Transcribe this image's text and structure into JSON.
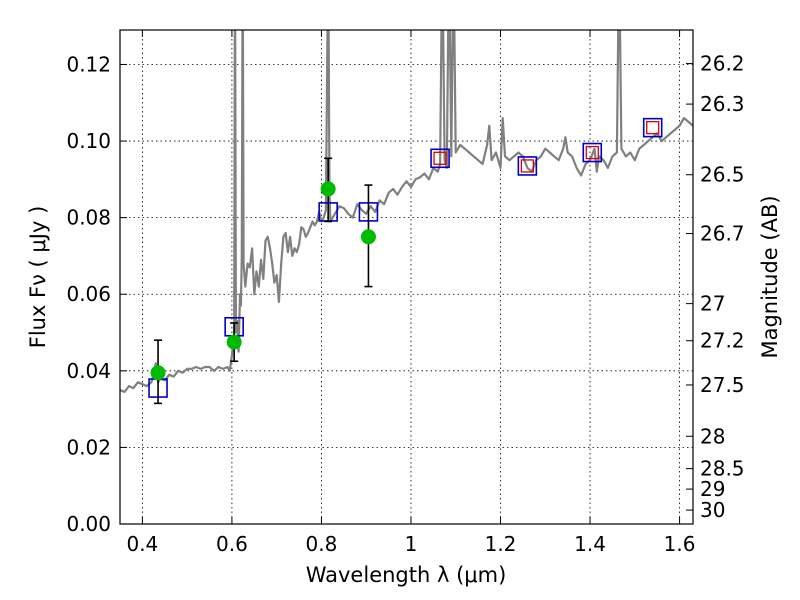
{
  "chart_data": {
    "type": "line",
    "xlabel": "Wavelength  λ (μm)",
    "ylabel": "Flux  Fν  ( μJy )",
    "ylabel_right": "Magnitude (AB)",
    "xlim": [
      0.35,
      1.63
    ],
    "ylim": [
      0.0,
      0.129
    ],
    "grid": true,
    "x_ticks": [
      0.4,
      0.6,
      0.8,
      1.0,
      1.2,
      1.4,
      1.6
    ],
    "x_tick_labels": [
      "0.4",
      "0.6",
      "0.8",
      "1",
      "1.2",
      "1.4",
      "1.6"
    ],
    "y_ticks": [
      0.0,
      0.02,
      0.04,
      0.06,
      0.08,
      0.1,
      0.12
    ],
    "y_tick_labels": [
      "0.00",
      "0.02",
      "0.04",
      "0.06",
      "0.08",
      "0.10",
      "0.12"
    ],
    "mag_ticks": [
      26.2,
      26.3,
      26.5,
      26.7,
      27,
      27.2,
      27.5,
      28,
      28.5,
      29,
      30
    ],
    "mag_tick_labels": [
      "26.2",
      "26.3",
      "26.5",
      "26.7",
      "27",
      "27.2",
      "27.5",
      "28",
      "28.5",
      "29",
      "30"
    ],
    "colors": {
      "spectrum": "#808080",
      "observed": "#00bb00",
      "model_box": "#0000cc",
      "model_box_inner": "#dd0000",
      "error_bar": "#000000"
    },
    "series": [
      {
        "kind": "spectrum",
        "points": [
          [
            0.35,
            0.035
          ],
          [
            0.36,
            0.0345
          ],
          [
            0.37,
            0.036
          ],
          [
            0.38,
            0.0355
          ],
          [
            0.39,
            0.037
          ],
          [
            0.4,
            0.0365
          ],
          [
            0.41,
            0.036
          ],
          [
            0.42,
            0.037
          ],
          [
            0.425,
            0.039
          ],
          [
            0.43,
            0.042
          ],
          [
            0.435,
            0.037
          ],
          [
            0.44,
            0.038
          ],
          [
            0.45,
            0.0375
          ],
          [
            0.46,
            0.039
          ],
          [
            0.47,
            0.0385
          ],
          [
            0.48,
            0.04
          ],
          [
            0.49,
            0.0395
          ],
          [
            0.5,
            0.0405
          ],
          [
            0.51,
            0.0405
          ],
          [
            0.52,
            0.041
          ],
          [
            0.53,
            0.0405
          ],
          [
            0.54,
            0.041
          ],
          [
            0.55,
            0.041
          ],
          [
            0.56,
            0.04
          ],
          [
            0.57,
            0.041
          ],
          [
            0.58,
            0.0405
          ],
          [
            0.59,
            0.041
          ],
          [
            0.595,
            0.04
          ],
          [
            0.6,
            0.044
          ],
          [
            0.605,
            0.05
          ],
          [
            0.607,
            0.15
          ],
          [
            0.609,
            0.05
          ],
          [
            0.612,
            0.053
          ],
          [
            0.615,
            0.045
          ],
          [
            0.618,
            0.06
          ],
          [
            0.62,
            0.057
          ],
          [
            0.622,
            0.07
          ],
          [
            0.624,
            0.15
          ],
          [
            0.626,
            0.068
          ],
          [
            0.63,
            0.062
          ],
          [
            0.635,
            0.068
          ],
          [
            0.64,
            0.067
          ],
          [
            0.645,
            0.072
          ],
          [
            0.65,
            0.06
          ],
          [
            0.655,
            0.066
          ],
          [
            0.66,
            0.062
          ],
          [
            0.665,
            0.069
          ],
          [
            0.67,
            0.064
          ],
          [
            0.675,
            0.074
          ],
          [
            0.68,
            0.075
          ],
          [
            0.685,
            0.072
          ],
          [
            0.69,
            0.068
          ],
          [
            0.695,
            0.063
          ],
          [
            0.7,
            0.065
          ],
          [
            0.705,
            0.058
          ],
          [
            0.71,
            0.068
          ],
          [
            0.715,
            0.075
          ],
          [
            0.72,
            0.076
          ],
          [
            0.725,
            0.071
          ],
          [
            0.73,
            0.075
          ],
          [
            0.735,
            0.07
          ],
          [
            0.74,
            0.072
          ],
          [
            0.745,
            0.071
          ],
          [
            0.75,
            0.073
          ],
          [
            0.755,
            0.0775
          ],
          [
            0.76,
            0.077
          ],
          [
            0.765,
            0.075
          ],
          [
            0.77,
            0.076
          ],
          [
            0.775,
            0.0775
          ],
          [
            0.78,
            0.079
          ],
          [
            0.785,
            0.078
          ],
          [
            0.79,
            0.079
          ],
          [
            0.795,
            0.0815
          ],
          [
            0.8,
            0.079
          ],
          [
            0.805,
            0.08
          ],
          [
            0.81,
            0.082
          ],
          [
            0.815,
            0.15
          ],
          [
            0.818,
            0.086
          ],
          [
            0.82,
            0.079
          ],
          [
            0.83,
            0.081
          ],
          [
            0.84,
            0.083
          ],
          [
            0.85,
            0.0825
          ],
          [
            0.86,
            0.081
          ],
          [
            0.87,
            0.08
          ],
          [
            0.88,
            0.0835
          ],
          [
            0.89,
            0.082
          ],
          [
            0.9,
            0.081
          ],
          [
            0.91,
            0.083
          ],
          [
            0.92,
            0.0815
          ],
          [
            0.93,
            0.0845
          ],
          [
            0.94,
            0.0835
          ],
          [
            0.95,
            0.0865
          ],
          [
            0.96,
            0.0875
          ],
          [
            0.97,
            0.086
          ],
          [
            0.98,
            0.088
          ],
          [
            0.99,
            0.0895
          ],
          [
            1.0,
            0.088
          ],
          [
            1.01,
            0.09
          ],
          [
            1.02,
            0.0905
          ],
          [
            1.03,
            0.0915
          ],
          [
            1.04,
            0.09
          ],
          [
            1.05,
            0.093
          ],
          [
            1.06,
            0.092
          ],
          [
            1.065,
            0.094
          ],
          [
            1.07,
            0.15
          ],
          [
            1.075,
            0.095
          ],
          [
            1.08,
            0.093
          ],
          [
            1.085,
            0.15
          ],
          [
            1.09,
            0.096
          ],
          [
            1.095,
            0.15
          ],
          [
            1.1,
            0.097
          ],
          [
            1.11,
            0.099
          ],
          [
            1.12,
            0.098
          ],
          [
            1.13,
            0.097
          ],
          [
            1.14,
            0.096
          ],
          [
            1.15,
            0.095
          ],
          [
            1.16,
            0.094
          ],
          [
            1.17,
            0.099
          ],
          [
            1.175,
            0.104
          ],
          [
            1.18,
            0.095
          ],
          [
            1.19,
            0.097
          ],
          [
            1.2,
            0.093
          ],
          [
            1.205,
            0.106
          ],
          [
            1.21,
            0.096
          ],
          [
            1.22,
            0.095
          ],
          [
            1.23,
            0.096
          ],
          [
            1.24,
            0.097
          ],
          [
            1.25,
            0.096
          ],
          [
            1.26,
            0.093
          ],
          [
            1.27,
            0.092
          ],
          [
            1.28,
            0.095
          ],
          [
            1.29,
            0.096
          ],
          [
            1.3,
            0.098
          ],
          [
            1.31,
            0.097
          ],
          [
            1.32,
            0.096
          ],
          [
            1.33,
            0.095
          ],
          [
            1.34,
            0.098
          ],
          [
            1.345,
            0.101
          ],
          [
            1.35,
            0.097
          ],
          [
            1.36,
            0.096
          ],
          [
            1.37,
            0.093
          ],
          [
            1.38,
            0.091
          ],
          [
            1.39,
            0.094
          ],
          [
            1.4,
            0.095
          ],
          [
            1.41,
            0.098
          ],
          [
            1.415,
            0.092
          ],
          [
            1.42,
            0.096
          ],
          [
            1.43,
            0.095
          ],
          [
            1.44,
            0.093
          ],
          [
            1.45,
            0.096
          ],
          [
            1.46,
            0.097
          ],
          [
            1.465,
            0.15
          ],
          [
            1.47,
            0.098
          ],
          [
            1.48,
            0.096
          ],
          [
            1.49,
            0.097
          ],
          [
            1.5,
            0.095
          ],
          [
            1.51,
            0.098
          ],
          [
            1.52,
            0.099
          ],
          [
            1.53,
            0.1
          ],
          [
            1.54,
            0.101
          ],
          [
            1.55,
            0.102
          ],
          [
            1.56,
            0.1
          ],
          [
            1.57,
            0.101
          ],
          [
            1.58,
            0.102
          ],
          [
            1.59,
            0.103
          ],
          [
            1.6,
            0.104
          ],
          [
            1.61,
            0.106
          ],
          [
            1.62,
            0.105
          ],
          [
            1.63,
            0.104
          ]
        ]
      },
      {
        "kind": "model_boxes",
        "points": [
          {
            "x": 0.435,
            "y": 0.0355,
            "inner": false
          },
          {
            "x": 0.605,
            "y": 0.0515,
            "inner": false
          },
          {
            "x": 0.815,
            "y": 0.0815,
            "inner": false
          },
          {
            "x": 0.905,
            "y": 0.0815,
            "inner": false
          },
          {
            "x": 1.065,
            "y": 0.0955,
            "inner": true
          },
          {
            "x": 1.26,
            "y": 0.0935,
            "inner": true
          },
          {
            "x": 1.405,
            "y": 0.097,
            "inner": true
          },
          {
            "x": 1.54,
            "y": 0.1035,
            "inner": true
          }
        ]
      },
      {
        "kind": "observed",
        "points": [
          {
            "x": 0.435,
            "y": 0.0395,
            "lo": 0.0315,
            "hi": 0.048
          },
          {
            "x": 0.605,
            "y": 0.0475,
            "lo": 0.0425,
            "hi": 0.0525
          },
          {
            "x": 0.815,
            "y": 0.0875,
            "lo": 0.079,
            "hi": 0.0955
          },
          {
            "x": 0.905,
            "y": 0.075,
            "lo": 0.062,
            "hi": 0.0885
          }
        ]
      }
    ]
  }
}
